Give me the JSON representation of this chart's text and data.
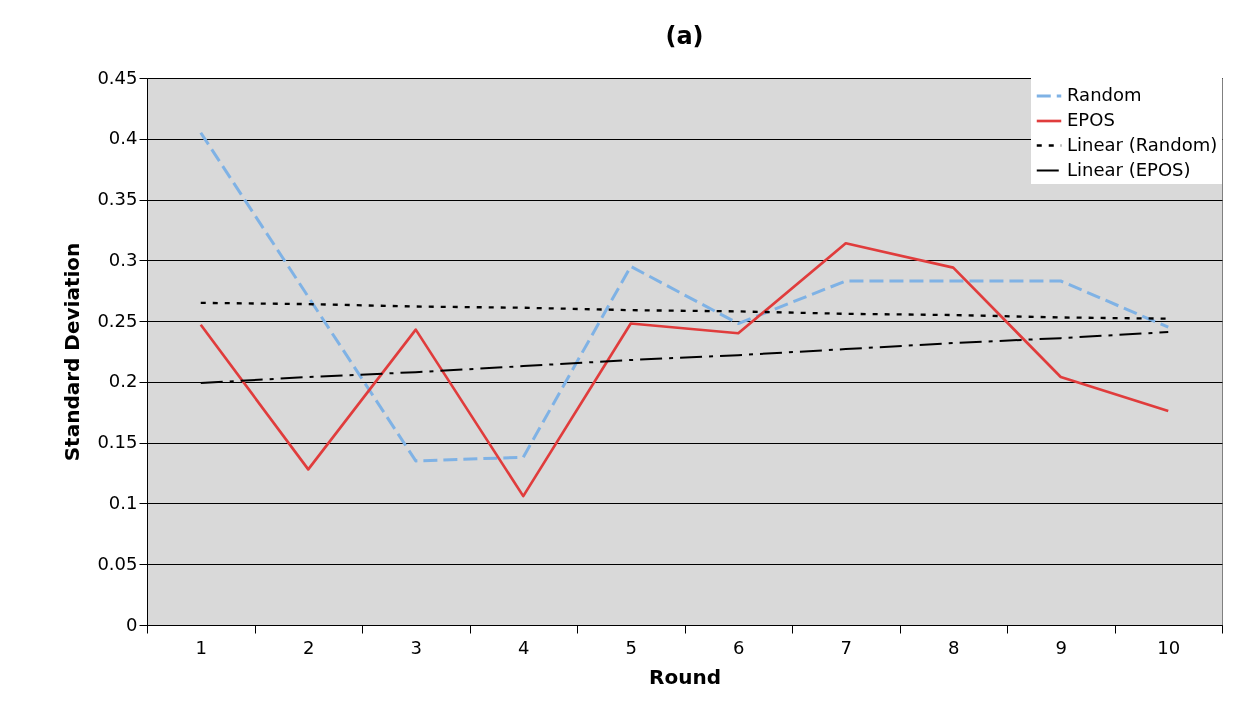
{
  "chart_data": {
    "type": "line",
    "title": "(a)",
    "xlabel": "Round",
    "ylabel": "Standard Deviation",
    "categories": [
      "1",
      "2",
      "3",
      "4",
      "5",
      "6",
      "7",
      "8",
      "9",
      "10"
    ],
    "series": [
      {
        "name": "Random",
        "color": "#7fb2e5",
        "line_style": "dashed",
        "values": [
          0.405,
          0.27,
          0.135,
          0.138,
          0.295,
          0.248,
          0.283,
          0.283,
          0.283,
          0.245
        ]
      },
      {
        "name": "EPOS",
        "color": "#e03c3c",
        "line_style": "solid",
        "values": [
          0.247,
          0.128,
          0.243,
          0.106,
          0.248,
          0.24,
          0.314,
          0.294,
          0.204,
          0.176
        ]
      },
      {
        "name": "Linear (Random)",
        "color": "#000000",
        "line_style": "dotted",
        "values": [
          0.265,
          0.264,
          0.262,
          0.261,
          0.259,
          0.258,
          0.256,
          0.255,
          0.253,
          0.252
        ]
      },
      {
        "name": "Linear (EPOS)",
        "color": "#000000",
        "line_style": "dashdot",
        "values": [
          0.199,
          0.204,
          0.208,
          0.213,
          0.218,
          0.222,
          0.227,
          0.232,
          0.236,
          0.241
        ]
      }
    ],
    "ylim": [
      0,
      0.45
    ],
    "yticks": [
      0,
      0.05,
      0.1,
      0.15,
      0.2,
      0.25,
      0.3,
      0.35,
      0.4,
      0.45
    ],
    "grid": "y",
    "legend": "top right",
    "marker": "none"
  }
}
